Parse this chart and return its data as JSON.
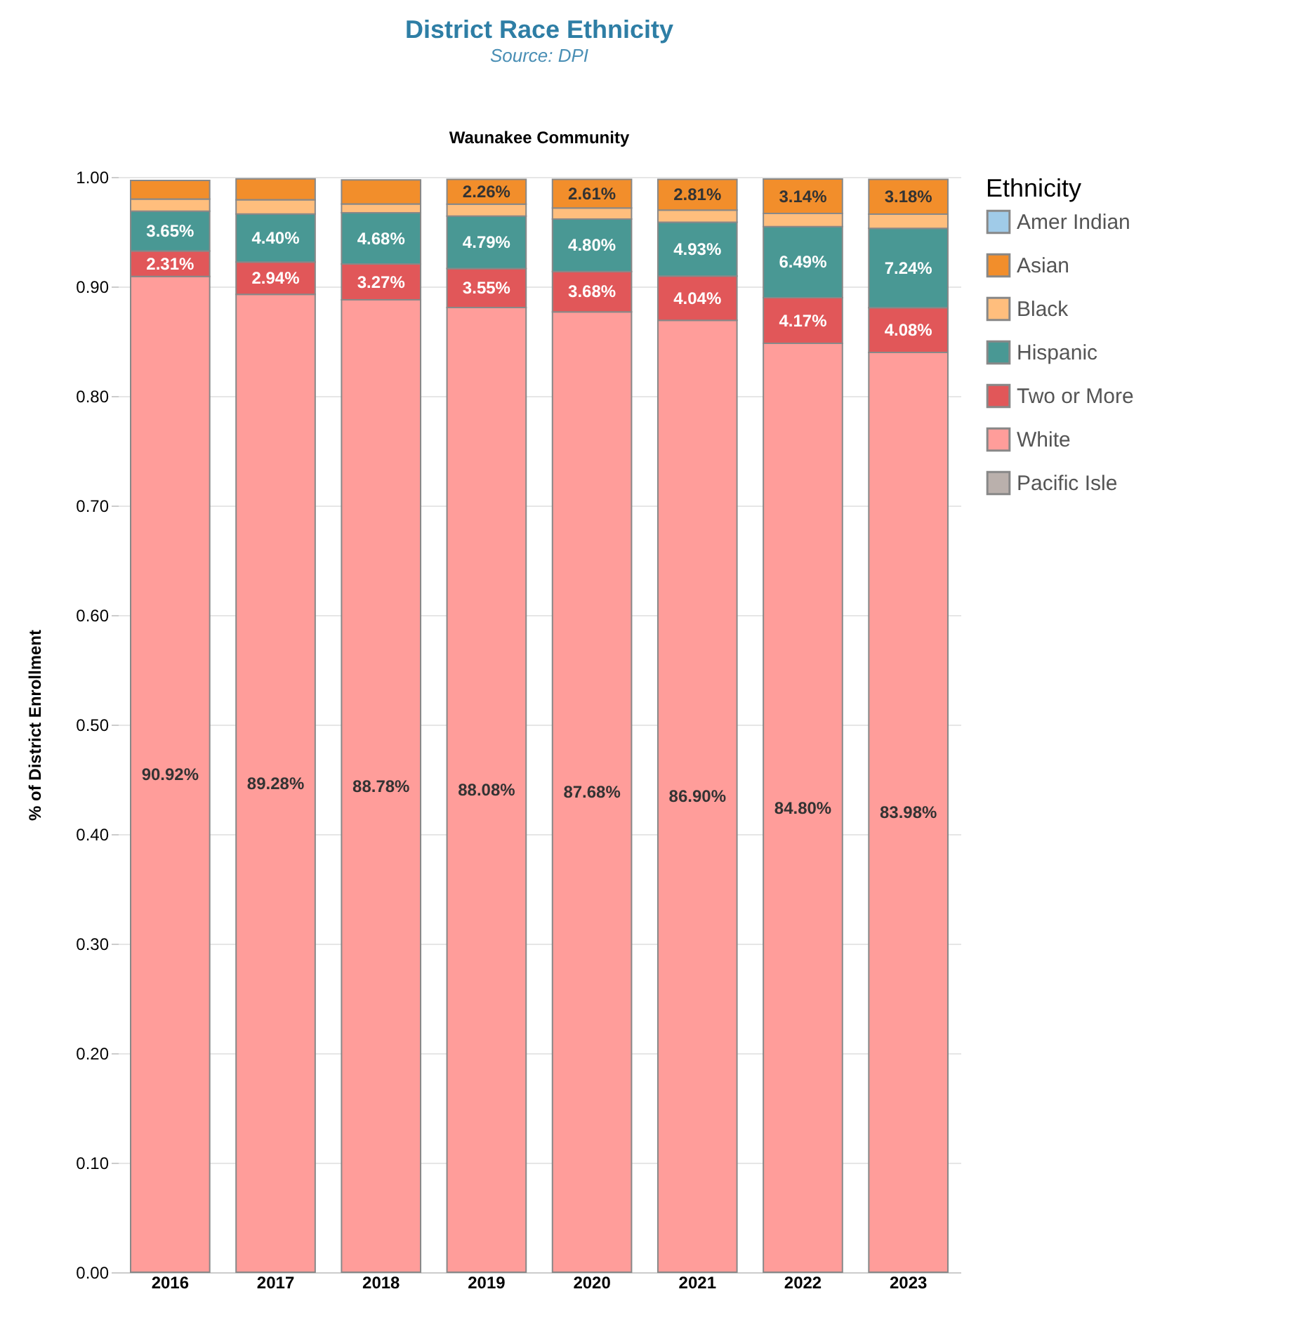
{
  "chart_data": {
    "type": "bar",
    "title": "District Race Ethnicity",
    "annotations": [
      "Source: DPI",
      "Waunakee Community"
    ],
    "ylabel": "% of District Enrollment",
    "legend_title": "Ethnicity",
    "legend": "right",
    "grid": "y",
    "stacked": true,
    "categories": [
      "2016",
      "2017",
      "2018",
      "2019",
      "2020",
      "2021",
      "2022",
      "2023"
    ],
    "ylim": [
      0,
      1
    ],
    "yticks": [
      {
        "value": 0,
        "label": "0.00"
      },
      {
        "value": 0.1,
        "label": "0.10"
      },
      {
        "value": 0.2,
        "label": "0.20"
      },
      {
        "value": 0.3,
        "label": "0.30"
      },
      {
        "value": 0.4,
        "label": "0.40"
      },
      {
        "value": 0.5,
        "label": "0.50"
      },
      {
        "value": 0.6,
        "label": "0.60"
      },
      {
        "value": 0.7,
        "label": "0.70"
      },
      {
        "value": 0.8,
        "label": "0.80"
      },
      {
        "value": 0.9,
        "label": "0.90"
      },
      {
        "value": 1,
        "label": "1.00"
      }
    ],
    "series": [
      {
        "name": "Pacific Isle",
        "color": "#bab0ac",
        "values": [
          null,
          null,
          null,
          null,
          null,
          null,
          null,
          null
        ]
      },
      {
        "name": "White",
        "color": "#ff9d9a",
        "values": [
          0.9092,
          0.8928,
          0.8878,
          0.8808,
          0.8768,
          0.869,
          0.848,
          0.8398
        ],
        "value_labels": [
          "90.92%",
          "89.28%",
          "88.78%",
          "88.08%",
          "87.68%",
          "86.90%",
          "84.80%",
          "83.98%"
        ]
      },
      {
        "name": "Two or More",
        "color": "#e15759",
        "values": [
          0.0231,
          0.0294,
          0.0327,
          0.0355,
          0.0368,
          0.0404,
          0.0417,
          0.0408
        ],
        "value_labels": [
          "2.31%",
          "2.94%",
          "3.27%",
          "3.55%",
          "3.68%",
          "4.04%",
          "4.17%",
          "4.08%"
        ]
      },
      {
        "name": "Hispanic",
        "color": "#499894",
        "values": [
          0.0365,
          0.044,
          0.0468,
          0.0479,
          0.048,
          0.0493,
          0.0649,
          0.0724
        ],
        "value_labels": [
          "3.65%",
          "4.40%",
          "4.68%",
          "4.79%",
          "4.80%",
          "4.93%",
          "6.49%",
          "7.24%"
        ]
      },
      {
        "name": "Black",
        "color": "#ffbe7d",
        "values": [
          0.011,
          0.013,
          0.008,
          0.011,
          0.01,
          0.011,
          0.012,
          0.013
        ]
      },
      {
        "name": "Asian",
        "color": "#f28e2b",
        "values": [
          0.017,
          0.019,
          0.022,
          0.0226,
          0.0261,
          0.0281,
          0.0314,
          0.0318
        ],
        "value_labels": [
          null,
          null,
          null,
          "2.26%",
          "2.61%",
          "2.81%",
          "3.14%",
          "3.18%"
        ]
      },
      {
        "name": "Amer Indian",
        "color": "#a0cbe8",
        "values": [
          null,
          null,
          null,
          null,
          null,
          null,
          null,
          null
        ]
      }
    ]
  }
}
